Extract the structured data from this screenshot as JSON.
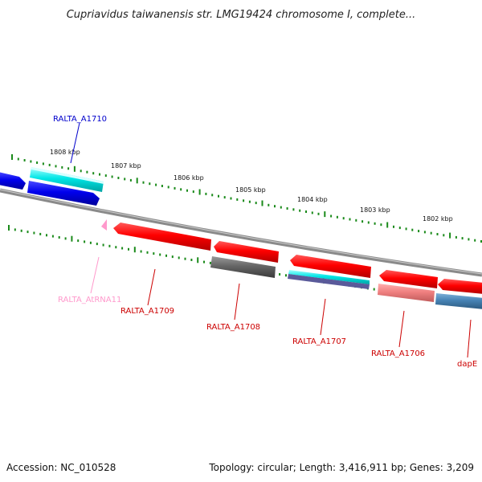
{
  "title": "Cupriavidus taiwanensis str. LMG19424 chromosome I, complete...",
  "footer": {
    "accession": "Accession: NC_010528",
    "topology": "Topology: circular; Length: 3,416,911 bp; Genes: 3,209"
  },
  "scale_labels": [
    "1808 kbp",
    "1807 kbp",
    "1806 kbp",
    "1805 kbp",
    "1804 kbp",
    "1803 kbp",
    "1802 kbp"
  ],
  "genes": [
    {
      "name": "RALTA_A1710",
      "color": "#0000cc"
    },
    {
      "name": "RALTA_AtRNA11",
      "color": "#ff99cc"
    },
    {
      "name": "RALTA_A1709",
      "color": "#cc0000"
    },
    {
      "name": "RALTA_A1708",
      "color": "#cc0000"
    },
    {
      "name": "RALTA_A1707",
      "color": "#cc0000"
    },
    {
      "name": "RALTA_A1706",
      "color": "#cc0000"
    },
    {
      "name": "dapE",
      "color": "#cc0000"
    }
  ],
  "colors": {
    "backbone": "#888888",
    "ticks": "#1a8a1a",
    "cds_red": "#ff0000",
    "cds_blue": "#0000ee",
    "cds_cyan": "#00e6e6",
    "cds_gray": "#666666",
    "cds_pink": "#f08080",
    "cds_steel": "#4682b4",
    "trna_pink": "#ff99cc"
  }
}
